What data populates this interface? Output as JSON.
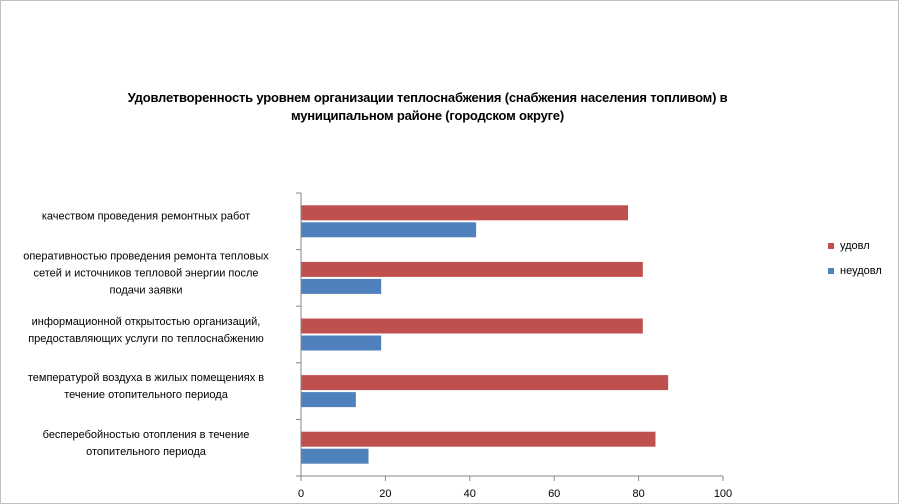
{
  "chart_data": {
    "type": "bar",
    "orientation": "horizontal",
    "title_lines": [
      "Удовлетворенность уровнем организации теплоснабжения (снабжения населения топливом) в",
      "муниципальном районе (городском округе)"
    ],
    "categories": [
      [
        "качеством проведения ремонтных работ"
      ],
      [
        "оперативностью проведения ремонта тепловых",
        "сетей и источников тепловой энергии после",
        "подачи заявки"
      ],
      [
        "информационной открытостью организаций,",
        "предоставляющих услуги по теплоснабжению"
      ],
      [
        "температурой воздуха в жилых помещениях в",
        "течение отопительного периода"
      ],
      [
        "бесперебойностью отопления в течение",
        "отопительного периода"
      ]
    ],
    "series": [
      {
        "name": "удовл",
        "color": "#c0504d",
        "values": [
          77.5,
          81,
          81,
          87,
          84
        ]
      },
      {
        "name": "неудовл",
        "color": "#4f81bd",
        "values": [
          41.5,
          19,
          19,
          13,
          16
        ]
      }
    ],
    "xlim": [
      0,
      100
    ],
    "x_ticks": [
      0,
      20,
      40,
      60,
      80,
      100
    ],
    "legend_position": "right",
    "grid": false
  }
}
